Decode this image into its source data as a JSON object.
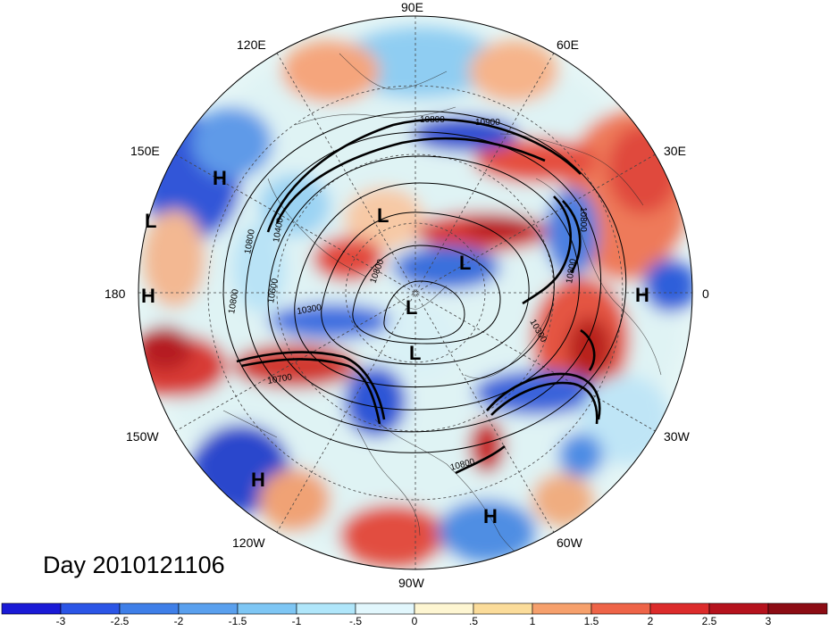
{
  "title": "Day 2010121106",
  "longitude_labels": [
    "90E",
    "60E",
    "30E",
    "0",
    "30W",
    "60W",
    "90W",
    "120W",
    "150W",
    "180",
    "150E",
    "120E"
  ],
  "pressure_centers": [
    {
      "label": "H",
      "lon": "150E side"
    },
    {
      "label": "L"
    },
    {
      "label": "H"
    },
    {
      "label": "L"
    },
    {
      "label": "L"
    },
    {
      "label": "L"
    },
    {
      "label": "L"
    },
    {
      "label": "H"
    },
    {
      "label": "H"
    },
    {
      "label": "H"
    }
  ],
  "contour_labels": [
    "10800",
    "10900",
    "10800",
    "10400",
    "10800",
    "10600",
    "10800",
    "10300",
    "10700",
    "10300",
    "10800",
    "10800",
    "10800"
  ],
  "colorbar": {
    "ticks": [
      "-3",
      "-2.5",
      "-2",
      "-1.5",
      "-1",
      "-.5",
      "0",
      ".5",
      "1",
      "1.5",
      "2",
      "2.5",
      "3"
    ],
    "colors": [
      "#1a1ad6",
      "#2b55e6",
      "#3f7fe8",
      "#5aa0ee",
      "#7ec6f4",
      "#b0e6fa",
      "#e2f7fd",
      "#fef6d2",
      "#fbdc9a",
      "#f6a06c",
      "#ee6448",
      "#dc2b2b",
      "#b5121d",
      "#8c0c14"
    ]
  },
  "palette": {
    "strong_blue": "#2234c8",
    "mid_blue": "#4a8fe6",
    "light_blue": "#9fd6f5",
    "pale": "#eef8f4",
    "pale_yellow": "#fbeabc",
    "orange": "#f3a26c",
    "red": "#e3443a",
    "dark_red": "#b51d22"
  }
}
